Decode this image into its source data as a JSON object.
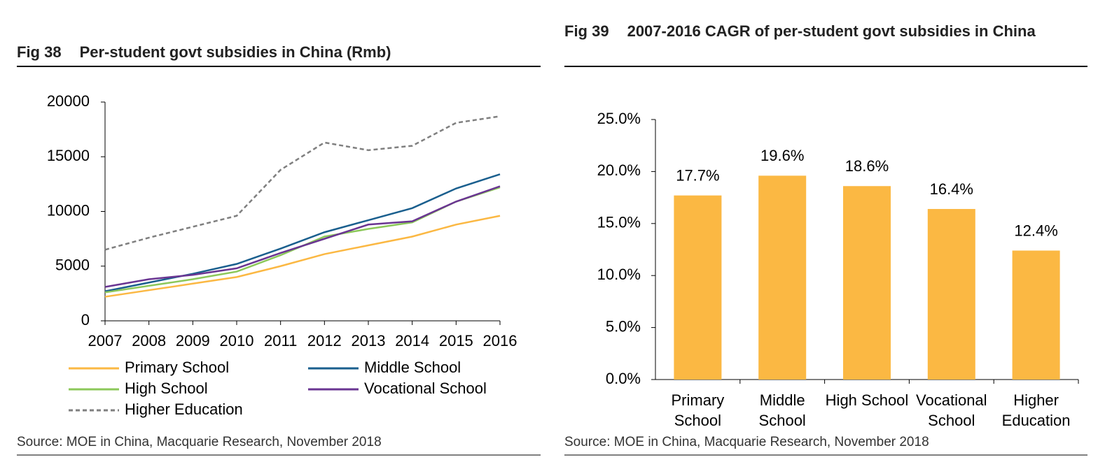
{
  "chart_data": [
    {
      "type": "line",
      "fig_label": "Fig 38",
      "title": "Per-student govt subsidies in China (Rmb)",
      "source": "Source: MOE in China, Macquarie Research, November 2018",
      "categories": [
        "2007",
        "2008",
        "2009",
        "2010",
        "2011",
        "2012",
        "2013",
        "2014",
        "2015",
        "2016"
      ],
      "ylim": [
        0,
        20000
      ],
      "yticks": [
        0,
        5000,
        10000,
        15000,
        20000
      ],
      "series": [
        {
          "name": "Primary School",
          "color": "#fbb843",
          "values": [
            2200,
            2800,
            3400,
            4000,
            5000,
            6100,
            6900,
            7700,
            8800,
            9600
          ]
        },
        {
          "name": "Middle School",
          "color": "#1a5f8e",
          "values": [
            2700,
            3500,
            4300,
            5200,
            6600,
            8100,
            9200,
            10300,
            12100,
            13400
          ]
        },
        {
          "name": "High School",
          "color": "#8cc85a",
          "values": [
            2600,
            3200,
            3800,
            4500,
            6000,
            7700,
            8400,
            9000,
            10900,
            12200
          ]
        },
        {
          "name": "Vocational School",
          "color": "#6a3592",
          "values": [
            3100,
            3800,
            4200,
            4800,
            6200,
            7500,
            8800,
            9100,
            10900,
            12300
          ]
        },
        {
          "name": "Higher Education",
          "color": "#7f7f7f",
          "dashed": true,
          "values": [
            6500,
            7600,
            8600,
            9600,
            13800,
            16300,
            15600,
            16000,
            18100,
            18700
          ]
        }
      ]
    },
    {
      "type": "bar",
      "fig_label": "Fig 39",
      "title": "2007-2016 CAGR of per-student govt subsidies in China",
      "source": "Source: MOE in China, Macquarie Research, November 2018",
      "categories": [
        "Primary School",
        "Middle School",
        "High School",
        "Vocational School",
        "Higher Education"
      ],
      "values": [
        17.7,
        19.6,
        18.6,
        16.4,
        12.4
      ],
      "value_labels": [
        "17.7%",
        "19.6%",
        "18.6%",
        "16.4%",
        "12.4%"
      ],
      "color": "#fbb843",
      "ylim": [
        0,
        25
      ],
      "yticks": [
        {
          "value": 0,
          "label": "0.0%"
        },
        {
          "value": 5,
          "label": "5.0%"
        },
        {
          "value": 10,
          "label": "10.0%"
        },
        {
          "value": 15,
          "label": "15.0%"
        },
        {
          "value": 20,
          "label": "20.0%"
        },
        {
          "value": 25,
          "label": "25.0%"
        }
      ]
    }
  ]
}
